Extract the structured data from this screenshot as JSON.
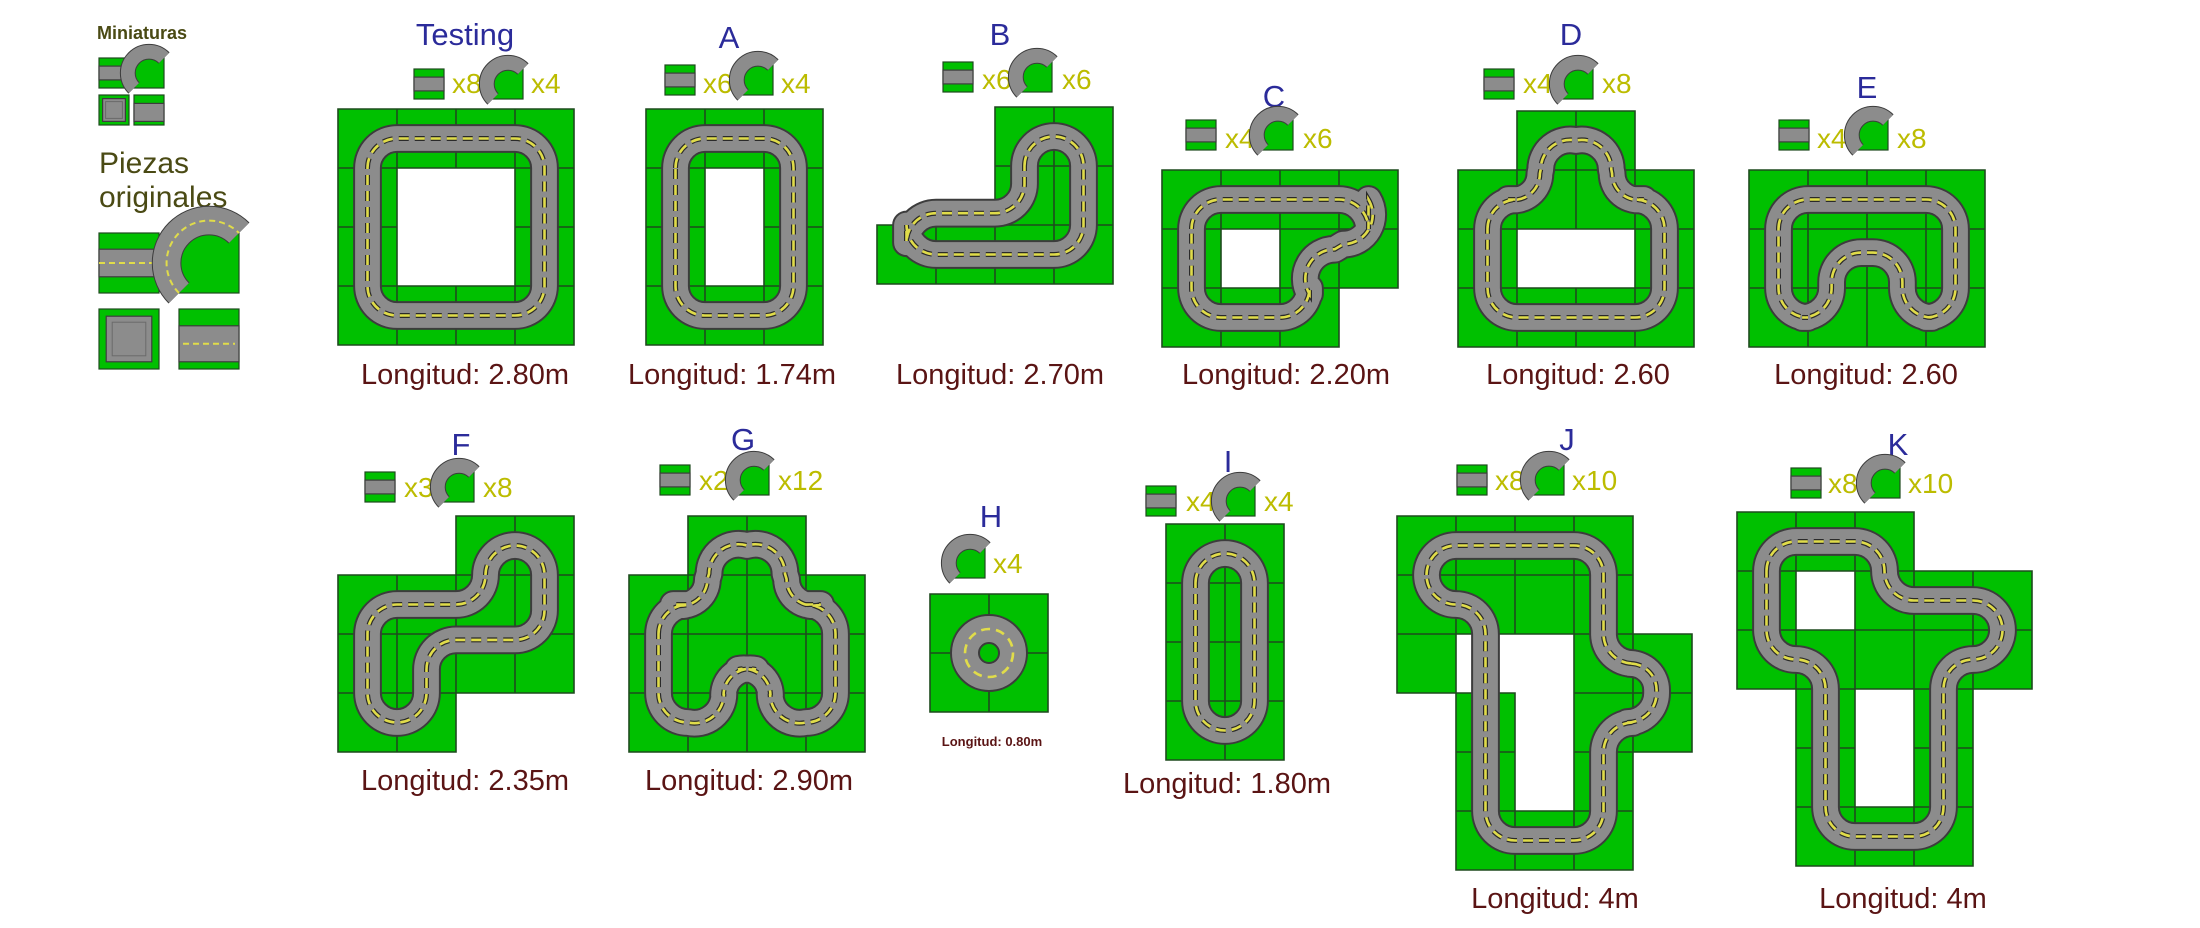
{
  "sidebar": {
    "thumbnails_label": "Miniaturas",
    "originals_label_1": "Piezas",
    "originals_label_2": "originales"
  },
  "tracks": [
    {
      "id": "testing",
      "title": "Testing",
      "length": "Longitud: 2.80m",
      "counts": {
        "straight": "x8",
        "curve": "x4"
      }
    },
    {
      "id": "a",
      "title": "A",
      "length": "Longitud: 1.74m",
      "counts": {
        "straight": "x6",
        "curve": "x4"
      }
    },
    {
      "id": "b",
      "title": "B",
      "length": "Longitud: 2.70m",
      "counts": {
        "straight": "x6",
        "curve": "x6"
      }
    },
    {
      "id": "c",
      "title": "C",
      "length": "Longitud: 2.20m",
      "counts": {
        "straight": "x4",
        "curve": "x6"
      }
    },
    {
      "id": "d",
      "title": "D",
      "length": "Longitud: 2.60",
      "counts": {
        "straight": "x4",
        "curve": "x8"
      }
    },
    {
      "id": "e",
      "title": "E",
      "length": "Longitud: 2.60",
      "counts": {
        "straight": "x4",
        "curve": "x8"
      }
    },
    {
      "id": "f",
      "title": "F",
      "length": "Longitud: 2.35m",
      "counts": {
        "straight": "x3",
        "curve": "x8"
      }
    },
    {
      "id": "g",
      "title": "G",
      "length": "Longitud: 2.90m",
      "counts": {
        "straight": "x2",
        "curve": "x12"
      }
    },
    {
      "id": "h",
      "title": "H",
      "length": "Longitud: 0.80m",
      "counts": {
        "curve": "x4"
      }
    },
    {
      "id": "i",
      "title": "I",
      "length": "Longitud: 1.80m",
      "counts": {
        "straight": "x4",
        "curve": "x4"
      }
    },
    {
      "id": "j",
      "title": "J",
      "length": "Longitud: 4m",
      "counts": {
        "straight": "x8",
        "curve": "x10"
      }
    },
    {
      "id": "k",
      "title": "K",
      "length": "Longitud: 4m",
      "counts": {
        "straight": "x8",
        "curve": "x10"
      }
    }
  ],
  "colors": {
    "grass": "#00c000",
    "road": "#8c8c8c",
    "road_edge": "#3c3c3c",
    "lane_mark": "#e0dc4a",
    "title": "#2b2b9a",
    "length": "#5a1414",
    "count": "#bcbc00"
  }
}
